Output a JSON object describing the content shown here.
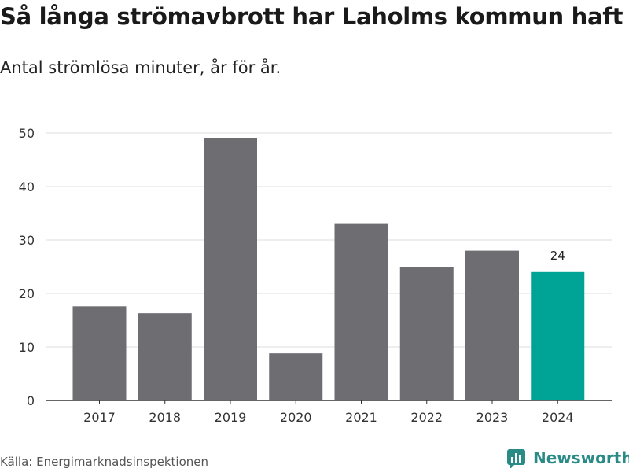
{
  "header": {
    "title": "Så långa strömavbrott har Laholms kommun haft",
    "subtitle": "Antal strömlösa minuter, år för år."
  },
  "footer": {
    "source": "Källa: Energimarknadsinspektionen",
    "brand": "Newsworthy"
  },
  "colors": {
    "bar": "#6e6d72",
    "highlight": "#00a497",
    "grid": "#dddddd",
    "axis": "#333333"
  },
  "chart_data": {
    "type": "bar",
    "title": "Så långa strömavbrott har Laholms kommun haft",
    "subtitle": "Antal strömlösa minuter, år för år.",
    "categories": [
      "2017",
      "2018",
      "2019",
      "2020",
      "2021",
      "2022",
      "2023",
      "2024"
    ],
    "values": [
      17.6,
      16.3,
      49.1,
      8.8,
      33.0,
      24.9,
      28.0,
      24.0
    ],
    "highlight_index": 7,
    "data_labels": [
      {
        "index": 7,
        "text": "24"
      }
    ],
    "yticks": [
      0,
      10,
      20,
      30,
      40,
      50
    ],
    "ylim": [
      0,
      50
    ],
    "xlabel": "",
    "ylabel": "",
    "grid": true
  }
}
